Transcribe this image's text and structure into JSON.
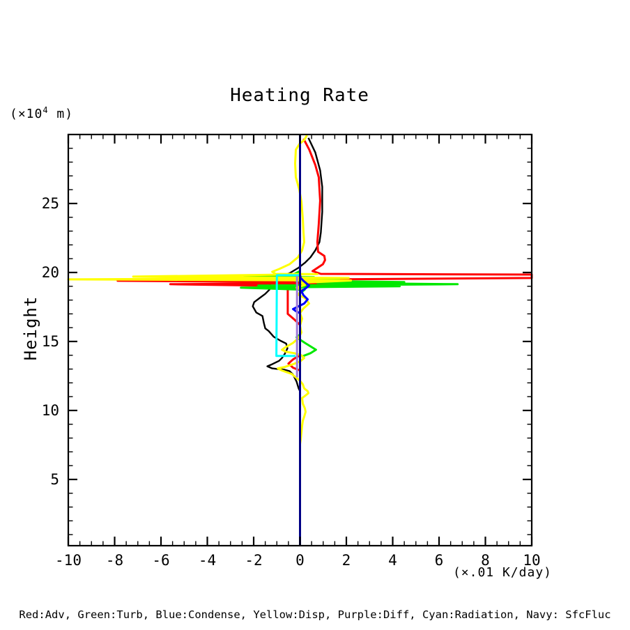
{
  "title": "Heating Rate",
  "y_unit": {
    "pre": "(×10",
    "sup": "4",
    "post": " m)"
  },
  "y_axis_label": "Height",
  "x_axis": {
    "unit": "(×.01 K/day)"
  },
  "legend": "Red:Adv, Green:Turb, Blue:Condense, Yellow:Disp, Purple:Diff, Cyan:Radiation, Navy: SfcFluc",
  "colors": {
    "axis": "#000000",
    "background": "#ffffff",
    "red": "#ff0000",
    "green": "#00e800",
    "blue": "#0000ff",
    "yellow": "#ffff00",
    "purple": "#9d7bd8",
    "cyan": "#00ffff",
    "navy": "#000085",
    "black": "#000000"
  },
  "chart_data": {
    "type": "line",
    "title": "Heating Rate",
    "xlabel": "(×.01 K/day)",
    "ylabel": "Height (×10^4 m)",
    "xlim": [
      -10,
      10
    ],
    "ylim": [
      0.2,
      30
    ],
    "x_ticks": [
      -10,
      -8,
      -6,
      -4,
      -2,
      0,
      2,
      4,
      6,
      8,
      10
    ],
    "x_minor_step": 0.5,
    "y_ticks": [
      5,
      10,
      15,
      20,
      25
    ],
    "y_minor_step": 1,
    "grid": false,
    "legend_position": "bottom-text",
    "series": [
      {
        "id": "total",
        "label": "",
        "color_name": "Black",
        "color": "#000000",
        "width": 2.4,
        "points": [
          [
            0.36,
            29.75
          ],
          [
            0.66,
            28.7
          ],
          [
            0.87,
            27.4
          ],
          [
            0.96,
            26.2
          ],
          [
            0.96,
            24.4
          ],
          [
            0.9,
            22.9
          ],
          [
            0.84,
            22.2
          ],
          [
            0.66,
            21.6
          ],
          [
            0.45,
            21.1
          ],
          [
            0.21,
            20.7
          ],
          [
            -0.06,
            20.35
          ],
          [
            -0.45,
            19.95
          ],
          [
            -1.05,
            19.6
          ],
          [
            -1.35,
            19.45
          ],
          [
            -1.26,
            19.2
          ],
          [
            -1.41,
            18.95
          ],
          [
            -1.32,
            18.75
          ],
          [
            -1.5,
            18.45
          ],
          [
            -1.74,
            18.15
          ],
          [
            -1.98,
            17.85
          ],
          [
            -2.04,
            17.55
          ],
          [
            -1.89,
            17.1
          ],
          [
            -1.62,
            16.85
          ],
          [
            -1.56,
            16.35
          ],
          [
            -1.5,
            15.95
          ],
          [
            -1.35,
            15.75
          ],
          [
            -1.14,
            15.35
          ],
          [
            -0.84,
            15.05
          ],
          [
            -0.6,
            14.85
          ],
          [
            -0.54,
            14.5
          ],
          [
            -0.66,
            14.1
          ],
          [
            -0.78,
            13.8
          ],
          [
            -0.9,
            13.6
          ],
          [
            -1.2,
            13.35
          ],
          [
            -1.41,
            13.2
          ],
          [
            -1.2,
            13.05
          ],
          [
            -0.96,
            13.0
          ],
          [
            -0.66,
            12.95
          ],
          [
            -0.45,
            12.85
          ],
          [
            -0.3,
            12.6
          ],
          [
            -0.15,
            12.1
          ],
          [
            -0.06,
            11.6
          ],
          [
            0,
            11.4
          ]
        ]
      },
      {
        "id": "adv",
        "label": "Adv",
        "color_name": "Red",
        "color": "#ff0000",
        "width": 3,
        "points": [
          [
            0.15,
            29.7
          ],
          [
            0.4,
            28.9
          ],
          [
            0.66,
            27.8
          ],
          [
            0.81,
            26.9
          ],
          [
            0.87,
            25.2
          ],
          [
            0.81,
            23.5
          ],
          [
            0.75,
            22.2
          ],
          [
            0.78,
            21.5
          ],
          [
            1.05,
            21.2
          ],
          [
            1.08,
            20.9
          ],
          [
            0.99,
            20.6
          ],
          [
            0.81,
            20.4
          ],
          [
            0.54,
            20.1
          ],
          [
            0.9,
            19.9
          ],
          [
            10,
            19.85
          ],
          [
            10,
            19.6
          ],
          [
            0.9,
            19.5
          ],
          [
            -7.87,
            19.4
          ],
          [
            3.8,
            19.25
          ],
          [
            -5.6,
            19.15
          ],
          [
            0.45,
            19.0
          ],
          [
            -0.53,
            18.85
          ],
          [
            -0.53,
            17.0
          ],
          [
            -0.25,
            16.6
          ],
          [
            0,
            16.2
          ],
          [
            0,
            14.0
          ],
          [
            -0.3,
            13.7
          ],
          [
            -0.5,
            13.4
          ],
          [
            -0.3,
            13.1
          ],
          [
            0,
            12.9
          ],
          [
            0,
            12.6
          ]
        ]
      },
      {
        "id": "turb",
        "label": "Turb",
        "color_name": "Green",
        "color": "#00e800",
        "width": 3,
        "points": [
          [
            0,
            20.1
          ],
          [
            -0.3,
            19.85
          ],
          [
            -2.4,
            19.7
          ],
          [
            0.6,
            19.65
          ],
          [
            -1.8,
            19.5
          ],
          [
            1.7,
            19.45
          ],
          [
            -0.2,
            19.4
          ],
          [
            4.5,
            19.3
          ],
          [
            0.75,
            19.25
          ],
          [
            6.8,
            19.15
          ],
          [
            -1.8,
            19.05
          ],
          [
            4.3,
            19.0
          ],
          [
            -2.55,
            18.9
          ],
          [
            0.2,
            18.75
          ],
          [
            0,
            18.5
          ],
          [
            0,
            15.5
          ],
          [
            -0.15,
            15.3
          ],
          [
            0.21,
            14.9
          ],
          [
            0.69,
            14.4
          ],
          [
            0.45,
            14.15
          ],
          [
            0.06,
            13.9
          ]
        ]
      },
      {
        "id": "disp",
        "label": "Disp",
        "color_name": "Yellow",
        "color": "#ffff00",
        "width": 3,
        "points": [
          [
            0.3,
            29.95
          ],
          [
            0.18,
            29.6
          ],
          [
            -0.03,
            29.3
          ],
          [
            -0.18,
            28.9
          ],
          [
            -0.21,
            27.9
          ],
          [
            -0.18,
            26.9
          ],
          [
            -0.03,
            26.0
          ],
          [
            0.06,
            25.15
          ],
          [
            0.12,
            23.9
          ],
          [
            0.15,
            22.9
          ],
          [
            0.18,
            22.2
          ],
          [
            0.09,
            21.6
          ],
          [
            -0.09,
            21.1
          ],
          [
            -0.45,
            20.6
          ],
          [
            -0.9,
            20.25
          ],
          [
            -1.2,
            20.05
          ],
          [
            -1.05,
            19.9
          ],
          [
            0.75,
            19.88
          ],
          [
            -7.2,
            19.7
          ],
          [
            2.1,
            19.6
          ],
          [
            -10,
            19.5
          ],
          [
            2.2,
            19.42
          ],
          [
            0,
            19.25
          ],
          [
            0.21,
            19.1
          ],
          [
            -0.15,
            18.9
          ],
          [
            0.09,
            18.7
          ],
          [
            -0.09,
            18.4
          ],
          [
            0.21,
            18.15
          ],
          [
            0.39,
            17.75
          ],
          [
            0.15,
            17.4
          ],
          [
            0,
            17.05
          ],
          [
            0.09,
            16.65
          ],
          [
            0,
            16.15
          ],
          [
            0.06,
            15.65
          ],
          [
            -0.06,
            15.25
          ],
          [
            -0.3,
            14.9
          ],
          [
            -0.66,
            14.55
          ],
          [
            -0.78,
            14.4
          ],
          [
            -0.6,
            14.25
          ],
          [
            -0.24,
            14.15
          ],
          [
            0.06,
            14.0
          ],
          [
            0.18,
            13.8
          ],
          [
            0,
            13.55
          ],
          [
            -0.3,
            13.35
          ],
          [
            -0.66,
            13.15
          ],
          [
            -0.96,
            13.05
          ],
          [
            -0.78,
            12.9
          ],
          [
            -0.54,
            12.75
          ],
          [
            -0.36,
            12.65
          ],
          [
            -0.18,
            12.4
          ],
          [
            0,
            12.15
          ],
          [
            0.12,
            11.9
          ],
          [
            0.18,
            11.6
          ],
          [
            0.33,
            11.4
          ],
          [
            0.36,
            11.25
          ],
          [
            0.21,
            11.05
          ],
          [
            0.09,
            10.9
          ],
          [
            0.12,
            10.5
          ],
          [
            0.21,
            10.15
          ],
          [
            0.24,
            9.9
          ],
          [
            0.18,
            9.55
          ],
          [
            0.12,
            9.25
          ],
          [
            0.09,
            8.9
          ],
          [
            0.06,
            8.4
          ],
          [
            0.03,
            7.9
          ],
          [
            0,
            7.55
          ]
        ]
      },
      {
        "id": "condense",
        "label": "Condense",
        "color_name": "Blue",
        "color": "#0000ff",
        "width": 3,
        "points": [
          [
            0,
            20.2
          ],
          [
            0,
            19.85
          ],
          [
            0.03,
            19.6
          ],
          [
            0.18,
            19.35
          ],
          [
            0.39,
            19.05
          ],
          [
            0.24,
            18.85
          ],
          [
            0.06,
            18.65
          ],
          [
            0.15,
            18.35
          ],
          [
            0.33,
            18.05
          ],
          [
            0.18,
            17.75
          ],
          [
            -0.06,
            17.55
          ],
          [
            -0.3,
            17.35
          ],
          [
            -0.18,
            17.2
          ],
          [
            0,
            17.05
          ]
        ]
      },
      {
        "id": "radiation",
        "label": "Radiation",
        "color_name": "Cyan",
        "color": "#00ffff",
        "width": 3,
        "points": [
          [
            0,
            19.8
          ],
          [
            -1.0,
            19.8
          ],
          [
            -1.02,
            13.95
          ],
          [
            -0.2,
            13.95
          ]
        ]
      },
      {
        "id": "diff",
        "label": "Diff",
        "color_name": "Purple",
        "color": "#9d7bd8",
        "width": 3,
        "points": [
          [
            -0.13,
            19.75
          ],
          [
            -0.13,
            12.4
          ]
        ]
      },
      {
        "id": "sfcfluc",
        "label": "SfcFluc",
        "color_name": "Navy",
        "color": "#000085",
        "width": 3,
        "points": [
          [
            0,
            0.2
          ],
          [
            0,
            29.95
          ]
        ]
      }
    ]
  }
}
